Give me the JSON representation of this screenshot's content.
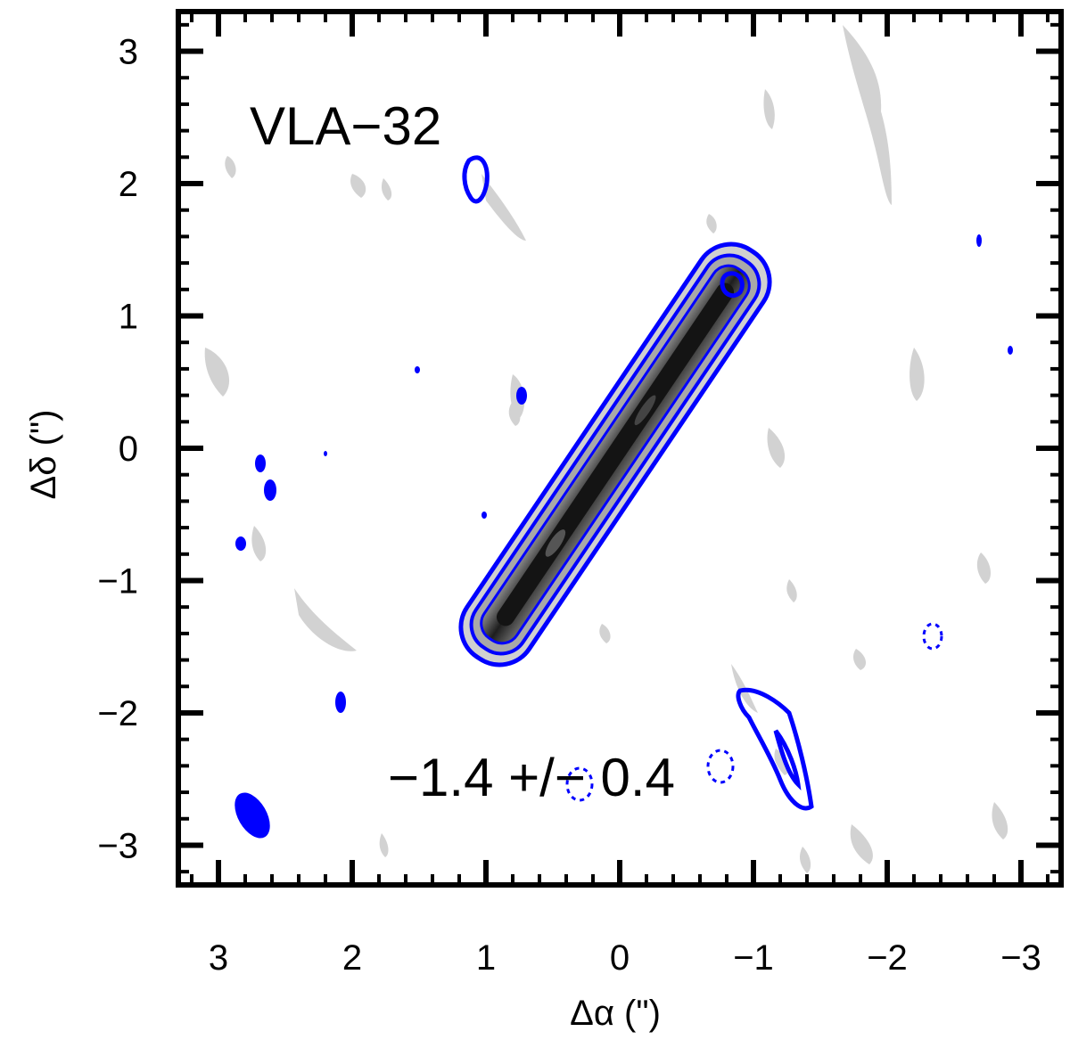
{
  "chart_data": {
    "type": "contour",
    "title": "",
    "xlabel": "Δα (\")",
    "ylabel": "Δδ (\")",
    "xlim": [
      3.3,
      -3.3
    ],
    "ylim": [
      -3.3,
      3.3
    ],
    "xticks": [
      3,
      2,
      1,
      0,
      -1,
      -2,
      -3
    ],
    "xtick_labels": [
      "3",
      "2",
      "1",
      "0",
      "−1",
      "−2",
      "−3"
    ],
    "yticks": [
      3,
      2,
      1,
      0,
      -1,
      -2,
      -3
    ],
    "ytick_labels": [
      "3",
      "2",
      "1",
      "0",
      "−1",
      "−2",
      "−3"
    ],
    "source_label": "VLA−32",
    "annotation": "−1.4 +/− 0.4",
    "colors": {
      "contour": "#0000ff",
      "grayscale": "#cccccc",
      "axis": "#000000"
    },
    "main_source": {
      "center": [
        0.0,
        0.0
      ],
      "major_axis_half_length": 1.45,
      "minor_axis_half_width": 0.08,
      "position_angle_deg": 34
    },
    "features": [
      {
        "x": 1.05,
        "y": 2.05,
        "kind": "blue-contour"
      },
      {
        "x": -0.88,
        "y": 1.25,
        "kind": "blue-contour"
      },
      {
        "x": -1.2,
        "y": -2.2,
        "kind": "blue-contour"
      },
      {
        "x": 0.7,
        "y": 0.4,
        "kind": "blue-filled"
      },
      {
        "x": 2.62,
        "y": -0.3,
        "kind": "blue-filled"
      },
      {
        "x": 2.88,
        "y": -0.7,
        "kind": "blue-filled"
      },
      {
        "x": 2.05,
        "y": -1.88,
        "kind": "blue-filled"
      },
      {
        "x": -2.45,
        "y": -1.4,
        "kind": "blue-dashed"
      },
      {
        "x": 0.38,
        "y": -2.55,
        "kind": "blue-dashed"
      },
      {
        "x": -0.9,
        "y": -2.55,
        "kind": "blue-dashed"
      }
    ],
    "beam": {
      "x": 2.75,
      "y": -2.75,
      "kind": "blue-filled-ellipse"
    }
  }
}
